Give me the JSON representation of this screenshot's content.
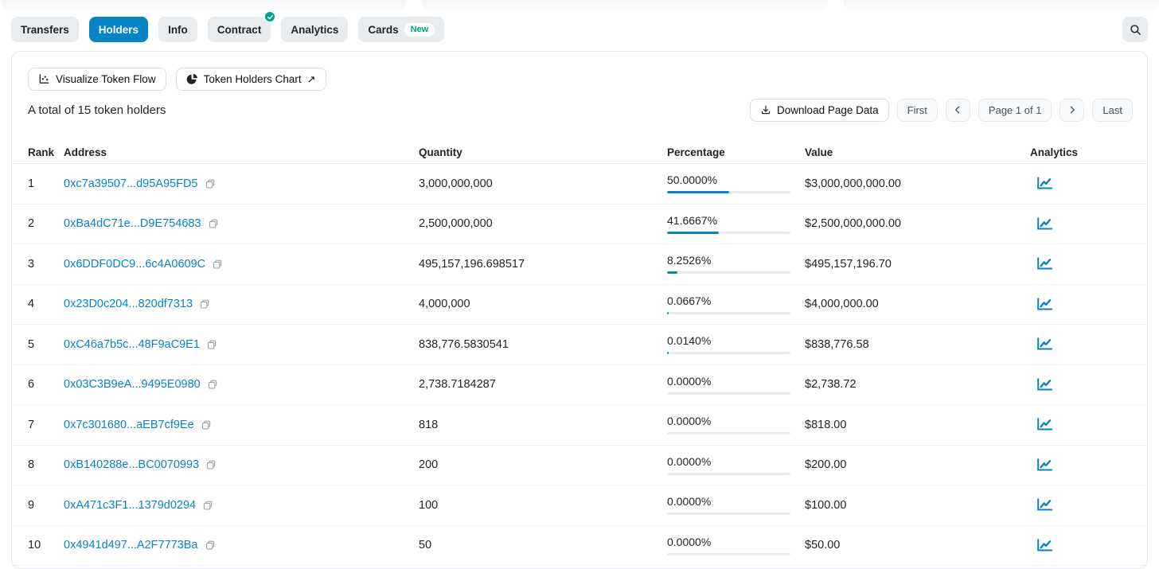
{
  "tabs": [
    {
      "label": "Transfers",
      "active": false
    },
    {
      "label": "Holders",
      "active": true
    },
    {
      "label": "Info",
      "active": false
    },
    {
      "label": "Contract",
      "active": false,
      "verified_check": true
    },
    {
      "label": "Analytics",
      "active": false
    },
    {
      "label": "Cards",
      "active": false,
      "badge": "New"
    }
  ],
  "toolbar": {
    "visualize_label": "Visualize Token Flow",
    "holders_chart_label": "Token Holders Chart",
    "holders_chart_arrow": "↗"
  },
  "summary": "A total of 15 token holders",
  "pagination": {
    "download_label": "Download Page Data",
    "first": "First",
    "page": "Page 1 of 1",
    "last": "Last"
  },
  "table": {
    "headers": [
      "Rank",
      "Address",
      "Quantity",
      "Percentage",
      "Value",
      "Analytics"
    ],
    "rows": [
      {
        "rank": "1",
        "address": "0xc7a39507...d95A95FD5",
        "quantity": "3,000,000,000",
        "percentage": "50.0000%",
        "pct": 50.0,
        "value": "$3,000,000,000.00"
      },
      {
        "rank": "2",
        "address": "0xBa4dC71e...D9E754683",
        "quantity": "2,500,000,000",
        "percentage": "41.6667%",
        "pct": 41.6667,
        "value": "$2,500,000,000.00"
      },
      {
        "rank": "3",
        "address": "0x6DDF0DC9...6c4A0609C",
        "quantity": "495,157,196.698517",
        "percentage": "8.2526%",
        "pct": 8.2526,
        "value": "$495,157,196.70"
      },
      {
        "rank": "4",
        "address": "0x23D0c204...820df7313",
        "quantity": "4,000,000",
        "percentage": "0.0667%",
        "pct": 0.0667,
        "value": "$4,000,000.00"
      },
      {
        "rank": "5",
        "address": "0xC46a7b5c...48F9aC9E1",
        "quantity": "838,776.5830541",
        "percentage": "0.0140%",
        "pct": 0.014,
        "value": "$838,776.58"
      },
      {
        "rank": "6",
        "address": "0x03C3B9eA...9495E0980",
        "quantity": "2,738.7184287",
        "percentage": "0.0000%",
        "pct": 0,
        "value": "$2,738.72"
      },
      {
        "rank": "7",
        "address": "0x7c301680...aEB7cf9Ee",
        "quantity": "818",
        "percentage": "0.0000%",
        "pct": 0,
        "value": "$818.00"
      },
      {
        "rank": "8",
        "address": "0xB140288e...BC0070993",
        "quantity": "200",
        "percentage": "0.0000%",
        "pct": 0,
        "value": "$200.00"
      },
      {
        "rank": "9",
        "address": "0xA471c3F1...1379d0294",
        "quantity": "100",
        "percentage": "0.0000%",
        "pct": 0,
        "value": "$100.00"
      },
      {
        "rank": "10",
        "address": "0x4941d497...A2F7773Ba",
        "quantity": "50",
        "percentage": "0.0000%",
        "pct": 0,
        "value": "$50.00"
      }
    ]
  },
  "colors": {
    "accent_blue": "#0784c3",
    "badge_green": "#00a186",
    "bar_track": "#e9ecef",
    "link_blue": "#0784c3"
  }
}
